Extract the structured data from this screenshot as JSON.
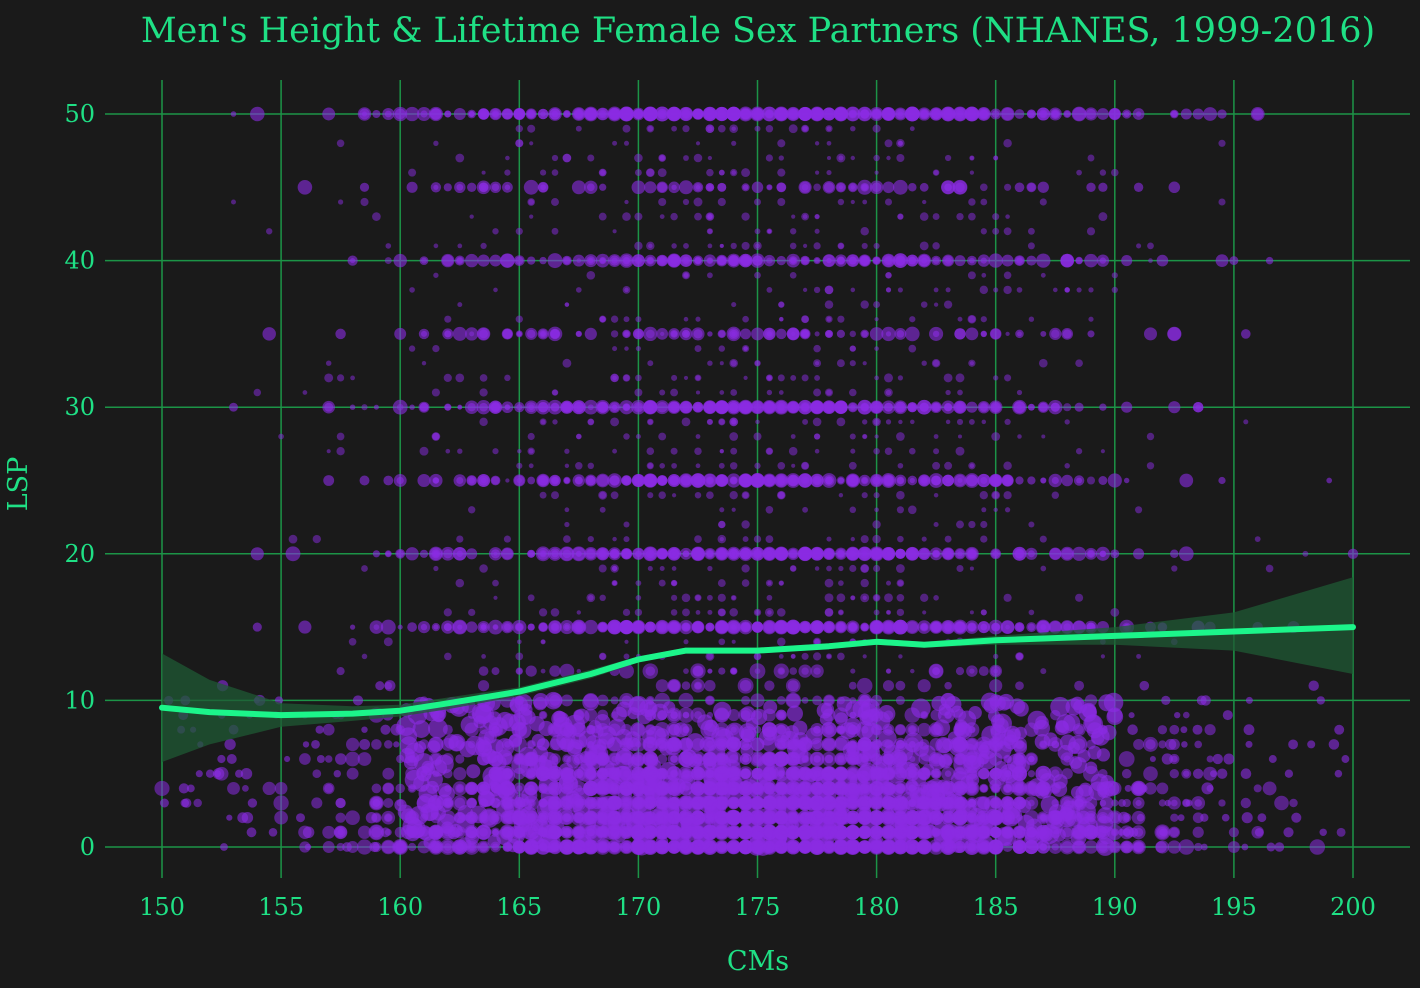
{
  "colors": {
    "background": "#1a1a1a",
    "grid": "#1c9447",
    "text": "#1fe085",
    "points": "#8a2be2",
    "smooth_line": "#1cf58a",
    "confidence_band": "#1f5a34"
  },
  "chart_data": {
    "type": "scatter",
    "title": "Men's Height & Lifetime Female Sex Partners (NHANES, 1999-2016)",
    "xlabel": "CMs",
    "ylabel": "LSP",
    "xlim": [
      150,
      200
    ],
    "ylim": [
      0,
      50
    ],
    "xticks": [
      "150",
      "155",
      "160",
      "165",
      "170",
      "175",
      "180",
      "185",
      "190",
      "195",
      "200"
    ],
    "yticks": [
      "0",
      "10",
      "20",
      "30",
      "40",
      "50"
    ],
    "grid": true,
    "legend": "none",
    "series": [
      {
        "kind": "scatter",
        "note_values": "LSP values concentrated at 0-12 and at round numbers 15, 20, 25, 30, 35, 40, 45, 50 (top-coded); densest between 160 and 190 cm"
      },
      {
        "kind": "smooth",
        "x": [
          150,
          152,
          155,
          158,
          160,
          162,
          165,
          168,
          170,
          172,
          175,
          178,
          180,
          182,
          185,
          190,
          195,
          200
        ],
        "y": [
          9.5,
          9.2,
          9.0,
          9.1,
          9.3,
          9.8,
          10.6,
          11.8,
          12.8,
          13.4,
          13.4,
          13.7,
          14.0,
          13.8,
          14.1,
          14.4,
          14.7,
          15.0
        ],
        "ci_low": [
          5.8,
          7.0,
          8.2,
          8.6,
          8.9,
          9.4,
          10.3,
          11.5,
          12.6,
          13.2,
          13.2,
          13.5,
          13.8,
          13.6,
          13.8,
          13.8,
          13.4,
          11.8
        ],
        "ci_high": [
          13.2,
          11.4,
          9.8,
          9.6,
          9.7,
          10.2,
          10.9,
          12.1,
          13.0,
          13.6,
          13.6,
          13.9,
          14.2,
          14.0,
          14.4,
          15.0,
          16.0,
          18.4
        ]
      }
    ]
  }
}
